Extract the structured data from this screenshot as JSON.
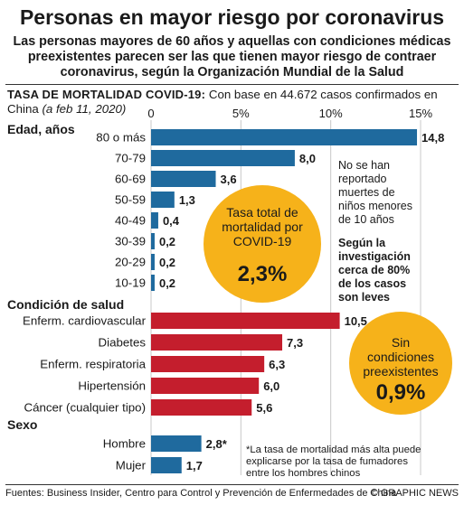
{
  "header": {
    "title": "Personas en mayor riesgo por coronavirus",
    "subtitle_lines": [
      "Las personas mayores de 60 años y aquellas con condiciones médicas",
      "preexistentes parecen ser las que tienen mayor riesgo de contraer",
      "coronavirus, según la Organización Mundial de la Salud"
    ]
  },
  "note": {
    "caps": "TASA DE MORTALIDAD COVID-19:",
    "text": " Con base en 44.672 casos confirmados en China ",
    "italic": "(a feb 11, 2020)"
  },
  "chart_data": {
    "type": "bar",
    "orientation": "horizontal",
    "xlim": [
      0,
      15
    ],
    "xticks": [
      0,
      5,
      10,
      15
    ],
    "xtick_labels": [
      "0",
      "5%",
      "10%",
      "15%"
    ],
    "grid": true,
    "groups": [
      {
        "label": "Edad, años",
        "color": "#1f6a9e",
        "categories": [
          "80 o más",
          "70-79",
          "60-69",
          "50-59",
          "40-49",
          "30-39",
          "20-29",
          "10-19"
        ],
        "values": [
          14.8,
          8.0,
          3.6,
          1.3,
          0.4,
          0.2,
          0.2,
          0.2
        ],
        "value_labels": [
          "14,8",
          "8,0",
          "3,6",
          "1,3",
          "0,4",
          "0,2",
          "0,2",
          "0,2"
        ]
      },
      {
        "label": "Condición de salud",
        "color": "#c41e2d",
        "categories": [
          "Enferm. cardiovascular",
          "Diabetes",
          "Enferm. respiratoria",
          "Hipertensión",
          "Cáncer (cualquier tipo)"
        ],
        "values": [
          10.5,
          7.3,
          6.3,
          6.0,
          5.6
        ],
        "value_labels": [
          "10,5",
          "7,3",
          "6,3",
          "6,0",
          "5,6"
        ]
      },
      {
        "label": "Sexo",
        "color": "#1f6a9e",
        "categories": [
          "Hombre",
          "Mujer"
        ],
        "values": [
          2.8,
          1.7
        ],
        "value_labels": [
          "2,8*",
          "1,7"
        ]
      }
    ]
  },
  "callouts": {
    "total": {
      "lines": [
        "Tasa total de",
        "mortalidad por",
        "COVID-19"
      ],
      "value": "2,3%",
      "color": "#f6b21a"
    },
    "no_conditions": {
      "lines": [
        "Sin",
        "condiciones",
        "preexistentes"
      ],
      "value": "0,9%",
      "color": "#f6b21a"
    },
    "children_note": [
      "No se han",
      "reportado",
      "muertes de",
      "niños menores",
      "de 10 años"
    ],
    "study_note": [
      "Según la",
      "investigación",
      "cerca de 80%",
      "de los casos",
      "son leves"
    ],
    "smoker_note": [
      "*La tasa de mortalidad más alta puede",
      "explicarse por la tasa de fumadores",
      "entre los hombres chinos"
    ]
  },
  "footer": {
    "sources": "Fuentes: Business Insider, Centro para Control y Prevención de Enfermedades de China",
    "credit": "© GRAPHIC NEWS"
  }
}
